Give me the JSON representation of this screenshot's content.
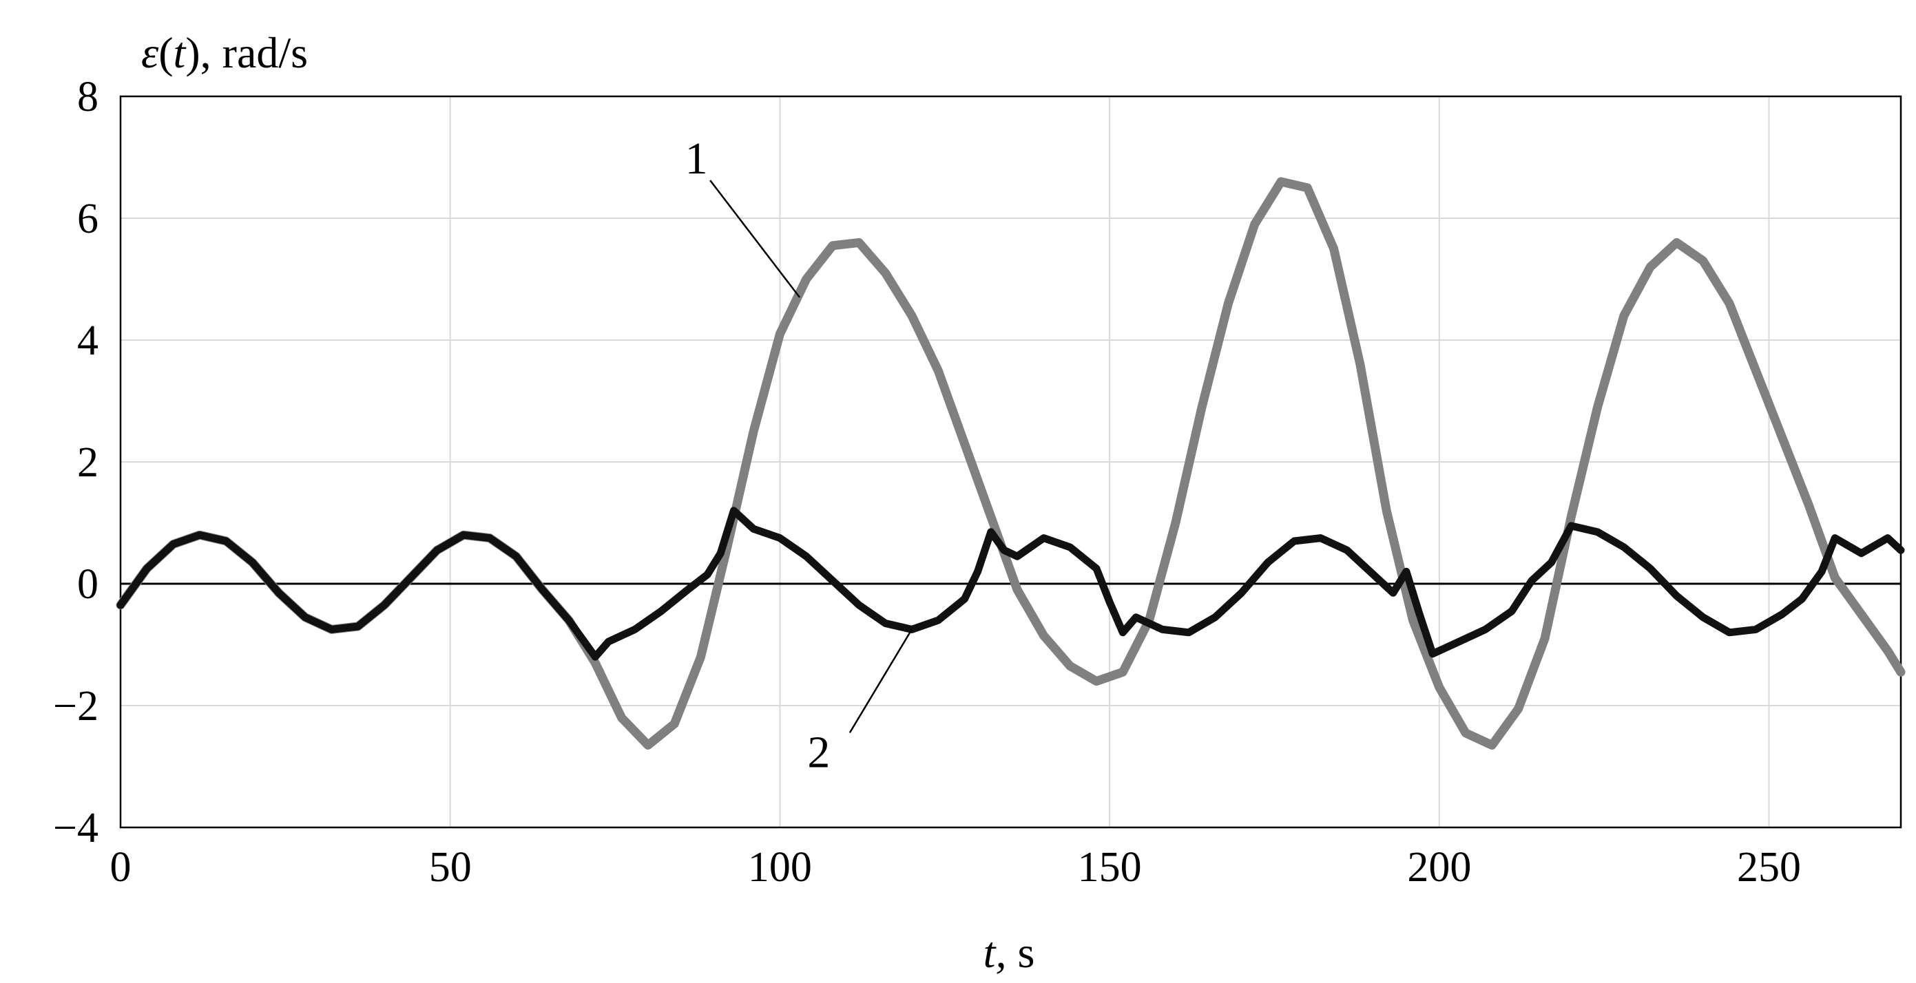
{
  "chart_data": {
    "type": "line",
    "title": "",
    "ylabel_prefix": "ε",
    "ylabel_open": "(",
    "ylabel_var": "t",
    "ylabel_suffix": "), rad/s",
    "xlabel_var": "t,",
    "xlabel_unit": " s",
    "xlim": [
      0,
      270
    ],
    "ylim": [
      -4,
      8
    ],
    "xticks": [
      0,
      50,
      100,
      150,
      200,
      250
    ],
    "yticks": [
      -4,
      -2,
      0,
      2,
      4,
      6,
      8
    ],
    "xtick_labels": [
      "0",
      "50",
      "100",
      "150",
      "200",
      "250"
    ],
    "ytick_labels": [
      "−4",
      "−2",
      "0",
      "2",
      "4",
      "6",
      "8"
    ],
    "grid": true,
    "colors": {
      "series_1": "#808080",
      "series_2": "#111111",
      "grid": "#d9d9d9"
    },
    "annotations": [
      {
        "text": "1",
        "series": 1,
        "point": [
          103,
          4.7
        ]
      },
      {
        "text": "2",
        "series": 2,
        "point": [
          120,
          -0.75
        ]
      }
    ],
    "series": [
      {
        "label": "1",
        "x": [
          0,
          4,
          8,
          12,
          16,
          20,
          24,
          28,
          32,
          36,
          40,
          44,
          48,
          52,
          56,
          60,
          64,
          68,
          72,
          76,
          80,
          84,
          88,
          92,
          96,
          100,
          104,
          108,
          112,
          116,
          120,
          124,
          128,
          132,
          136,
          140,
          144,
          148,
          152,
          156,
          160,
          164,
          168,
          172,
          176,
          180,
          184,
          188,
          192,
          196,
          200,
          204,
          208,
          212,
          216,
          220,
          224,
          228,
          232,
          236,
          240,
          244,
          248,
          252,
          256,
          260,
          264,
          268,
          270
        ],
        "y": [
          -0.35,
          0.25,
          0.65,
          0.8,
          0.7,
          0.35,
          -0.15,
          -0.55,
          -0.75,
          -0.7,
          -0.35,
          0.1,
          0.55,
          0.8,
          0.75,
          0.45,
          -0.1,
          -0.6,
          -1.3,
          -2.2,
          -2.65,
          -2.3,
          -1.2,
          0.6,
          2.5,
          4.1,
          5.0,
          5.55,
          5.6,
          5.1,
          4.4,
          3.5,
          2.3,
          1.1,
          -0.1,
          -0.85,
          -1.35,
          -1.6,
          -1.45,
          -0.6,
          1.0,
          2.9,
          4.6,
          5.9,
          6.6,
          6.5,
          5.5,
          3.6,
          1.2,
          -0.6,
          -1.7,
          -2.45,
          -2.65,
          -2.05,
          -0.9,
          1.1,
          2.9,
          4.4,
          5.2,
          5.6,
          5.3,
          4.6,
          3.5,
          2.4,
          1.3,
          0.1,
          -0.5,
          -1.1,
          -1.45
        ]
      },
      {
        "label": "2",
        "x": [
          0,
          4,
          8,
          12,
          16,
          20,
          24,
          28,
          32,
          36,
          40,
          44,
          48,
          52,
          56,
          60,
          64,
          68,
          72,
          74,
          78,
          82,
          86,
          89,
          91,
          93,
          96,
          100,
          104,
          108,
          112,
          116,
          120,
          124,
          128,
          130,
          132,
          134,
          136,
          140,
          144,
          148,
          150,
          152,
          154,
          158,
          162,
          166,
          170,
          174,
          178,
          182,
          186,
          190,
          193,
          195,
          197,
          199,
          203,
          207,
          211,
          214,
          217,
          220,
          224,
          228,
          232,
          236,
          240,
          244,
          248,
          252,
          255,
          258,
          260,
          264,
          268,
          270
        ],
        "y": [
          -0.35,
          0.25,
          0.65,
          0.8,
          0.7,
          0.35,
          -0.15,
          -0.55,
          -0.75,
          -0.7,
          -0.35,
          0.1,
          0.55,
          0.8,
          0.75,
          0.45,
          -0.1,
          -0.6,
          -1.2,
          -0.95,
          -0.75,
          -0.45,
          -0.1,
          0.15,
          0.5,
          1.2,
          0.9,
          0.75,
          0.45,
          0.05,
          -0.35,
          -0.65,
          -0.75,
          -0.6,
          -0.25,
          0.2,
          0.85,
          0.55,
          0.45,
          0.75,
          0.6,
          0.25,
          -0.3,
          -0.8,
          -0.55,
          -0.75,
          -0.8,
          -0.55,
          -0.15,
          0.35,
          0.7,
          0.75,
          0.55,
          0.15,
          -0.15,
          0.2,
          -0.5,
          -1.15,
          -0.95,
          -0.75,
          -0.45,
          0.05,
          0.35,
          0.95,
          0.85,
          0.6,
          0.25,
          -0.2,
          -0.55,
          -0.8,
          -0.75,
          -0.5,
          -0.25,
          0.2,
          0.75,
          0.5,
          0.75,
          0.55
        ]
      }
    ]
  }
}
